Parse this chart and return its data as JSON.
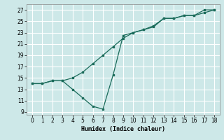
{
  "xlabel": "Humidex (Indice chaleur)",
  "bg_color": "#cde8e8",
  "grid_color": "#ffffff",
  "line_color": "#1a6b5a",
  "xlim": [
    -0.5,
    18.5
  ],
  "ylim": [
    8.5,
    28.0
  ],
  "xticks": [
    0,
    1,
    2,
    3,
    4,
    5,
    6,
    7,
    8,
    9,
    10,
    11,
    12,
    13,
    14,
    15,
    16,
    17,
    18
  ],
  "yticks": [
    9,
    11,
    13,
    15,
    17,
    19,
    21,
    23,
    25,
    27
  ],
  "line1_x": [
    0,
    1,
    2,
    3,
    4,
    5,
    6,
    7,
    8,
    9,
    10,
    11,
    12,
    13,
    14,
    15,
    16,
    17,
    18
  ],
  "line1_y": [
    14.0,
    14.0,
    14.5,
    14.5,
    15.0,
    16.0,
    17.5,
    19.0,
    20.5,
    22.0,
    23.0,
    23.5,
    24.0,
    25.5,
    25.5,
    26.0,
    26.0,
    26.5,
    27.0
  ],
  "line2_x": [
    0,
    1,
    2,
    3,
    4,
    5,
    6,
    7,
    8,
    9,
    10,
    11,
    12,
    13,
    14,
    15,
    16,
    17,
    18
  ],
  "line2_y": [
    14.0,
    14.0,
    14.5,
    14.5,
    13.0,
    11.5,
    10.0,
    9.5,
    15.5,
    22.5,
    23.0,
    23.5,
    24.2,
    25.5,
    25.5,
    26.0,
    26.0,
    27.0,
    27.0
  ]
}
